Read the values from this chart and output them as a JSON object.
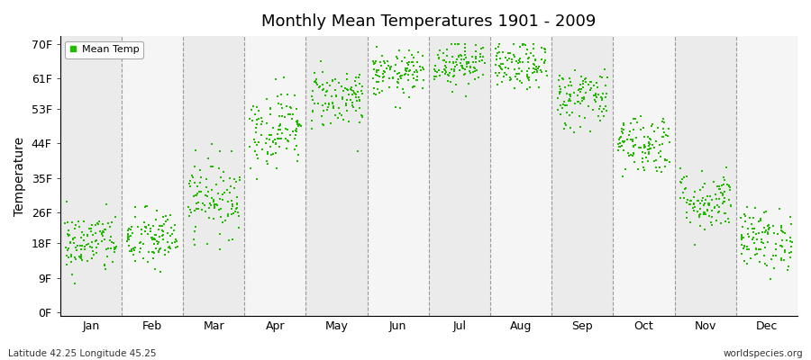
{
  "title": "Monthly Mean Temperatures 1901 - 2009",
  "ylabel": "Temperature",
  "xlabel_labels": [
    "Jan",
    "Feb",
    "Mar",
    "Apr",
    "May",
    "Jun",
    "Jul",
    "Aug",
    "Sep",
    "Oct",
    "Nov",
    "Dec"
  ],
  "ytick_labels": [
    "0F",
    "9F",
    "18F",
    "26F",
    "35F",
    "44F",
    "53F",
    "61F",
    "70F"
  ],
  "ytick_values": [
    0,
    9,
    18,
    26,
    35,
    44,
    53,
    61,
    70
  ],
  "ylim": [
    -1,
    72
  ],
  "dot_color": "#22bb00",
  "legend_label": "Mean Temp",
  "footer_left": "Latitude 42.25 Longitude 45.25",
  "footer_right": "worldspecies.org",
  "bg_color": "#ffffff",
  "plot_bg_color": "#ffffff",
  "monthly_means": [
    18,
    19,
    30,
    48,
    56,
    62,
    65,
    64,
    56,
    44,
    29,
    19
  ],
  "monthly_stds": [
    4,
    4,
    5,
    5,
    4,
    3,
    3,
    3,
    4,
    4,
    4,
    4
  ],
  "n_years": 109,
  "seed": 42,
  "col_colors": [
    "#ebebeb",
    "#f5f5f5"
  ]
}
